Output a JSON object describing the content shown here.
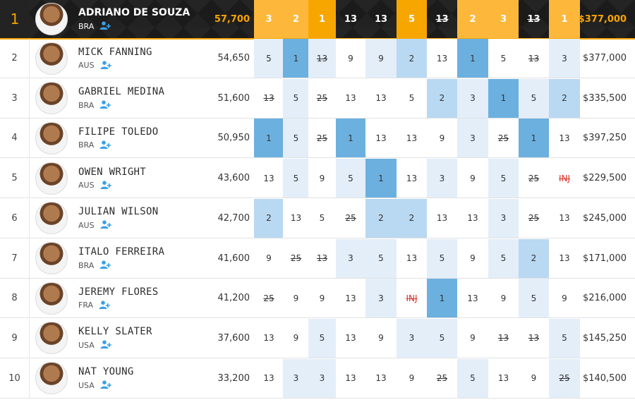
{
  "columns": {
    "event_count": 11
  },
  "leader": {
    "rank": "1",
    "name": "ADRIANO DE SOUZA",
    "country": "BRA",
    "points": "57,700",
    "results": [
      "3",
      "2",
      "1",
      "13",
      "13",
      "5",
      "13",
      "2",
      "3",
      "13",
      "1"
    ],
    "result_style": [
      "mid",
      "mid",
      "win",
      "dark",
      "dark",
      "win",
      "dark-strike",
      "mid",
      "mid",
      "dark-strike",
      "mid"
    ],
    "prize": "$377,000"
  },
  "rows": [
    {
      "rank": "2",
      "name": "MICK FANNING",
      "country": "AUS",
      "points": "54,650",
      "results": [
        "5",
        "1",
        "13",
        "9",
        "9",
        "2",
        "13",
        "1",
        "5",
        "13",
        "3"
      ],
      "levels": [
        3,
        1,
        3,
        4,
        3,
        2,
        4,
        1,
        4,
        4,
        3
      ],
      "strike": [
        2,
        9
      ],
      "prize": "$377,000"
    },
    {
      "rank": "3",
      "name": "GABRIEL MEDINA",
      "country": "BRA",
      "points": "51,600",
      "results": [
        "13",
        "5",
        "25",
        "13",
        "13",
        "5",
        "2",
        "3",
        "1",
        "5",
        "2"
      ],
      "levels": [
        4,
        3,
        4,
        4,
        4,
        4,
        2,
        3,
        1,
        3,
        2
      ],
      "strike": [
        0,
        2
      ],
      "prize": "$335,500"
    },
    {
      "rank": "4",
      "name": "FILIPE TOLEDO",
      "country": "BRA",
      "points": "50,950",
      "results": [
        "1",
        "5",
        "25",
        "1",
        "13",
        "13",
        "9",
        "3",
        "25",
        "1",
        "13"
      ],
      "levels": [
        1,
        3,
        4,
        1,
        4,
        4,
        4,
        3,
        4,
        1,
        4
      ],
      "strike": [
        2,
        8
      ],
      "prize": "$397,250"
    },
    {
      "rank": "5",
      "name": "OWEN WRIGHT",
      "country": "AUS",
      "points": "43,600",
      "results": [
        "13",
        "5",
        "9",
        "5",
        "1",
        "13",
        "3",
        "9",
        "5",
        "25",
        "INJ"
      ],
      "levels": [
        4,
        3,
        4,
        3,
        1,
        4,
        3,
        4,
        3,
        4,
        4
      ],
      "strike": [
        9
      ],
      "inj": [
        10
      ],
      "prize": "$229,500"
    },
    {
      "rank": "6",
      "name": "JULIAN WILSON",
      "country": "AUS",
      "points": "42,700",
      "results": [
        "2",
        "13",
        "5",
        "25",
        "2",
        "2",
        "13",
        "13",
        "3",
        "25",
        "13"
      ],
      "levels": [
        2,
        4,
        4,
        4,
        2,
        2,
        4,
        4,
        3,
        4,
        4
      ],
      "strike": [
        3,
        9
      ],
      "prize": "$245,000"
    },
    {
      "rank": "7",
      "name": "ITALO FERREIRA",
      "country": "BRA",
      "points": "41,600",
      "results": [
        "9",
        "25",
        "13",
        "3",
        "5",
        "13",
        "5",
        "9",
        "5",
        "2",
        "13"
      ],
      "levels": [
        4,
        4,
        4,
        3,
        3,
        4,
        3,
        4,
        3,
        2,
        4
      ],
      "strike": [
        1,
        2
      ],
      "prize": "$171,000"
    },
    {
      "rank": "8",
      "name": "JEREMY FLORES",
      "country": "FRA",
      "points": "41,200",
      "results": [
        "25",
        "9",
        "9",
        "13",
        "3",
        "INJ",
        "1",
        "13",
        "9",
        "5",
        "9"
      ],
      "levels": [
        4,
        4,
        4,
        4,
        3,
        4,
        1,
        4,
        4,
        3,
        4
      ],
      "strike": [
        0
      ],
      "inj": [
        5
      ],
      "prize": "$216,000"
    },
    {
      "rank": "9",
      "name": "KELLY SLATER",
      "country": "USA",
      "points": "37,600",
      "results": [
        "13",
        "9",
        "5",
        "13",
        "9",
        "3",
        "5",
        "9",
        "13",
        "13",
        "5"
      ],
      "levels": [
        4,
        4,
        3,
        4,
        4,
        3,
        3,
        4,
        4,
        4,
        3
      ],
      "strike": [
        8,
        9
      ],
      "prize": "$145,250"
    },
    {
      "rank": "10",
      "name": "NAT YOUNG",
      "country": "USA",
      "points": "33,200",
      "results": [
        "13",
        "3",
        "3",
        "13",
        "13",
        "9",
        "25",
        "5",
        "13",
        "9",
        "25"
      ],
      "levels": [
        4,
        3,
        3,
        4,
        4,
        4,
        4,
        3,
        4,
        4,
        3
      ],
      "strike": [
        6,
        10
      ],
      "prize": "$140,500"
    }
  ],
  "colors": {
    "accent": "#f7a400",
    "header_bg": "#1b1b1b",
    "follow_icon": "#3aa0e8",
    "injury": "#d9342b"
  },
  "icons": {
    "follow": "add-user-icon",
    "avatar": "surfer-avatar"
  }
}
